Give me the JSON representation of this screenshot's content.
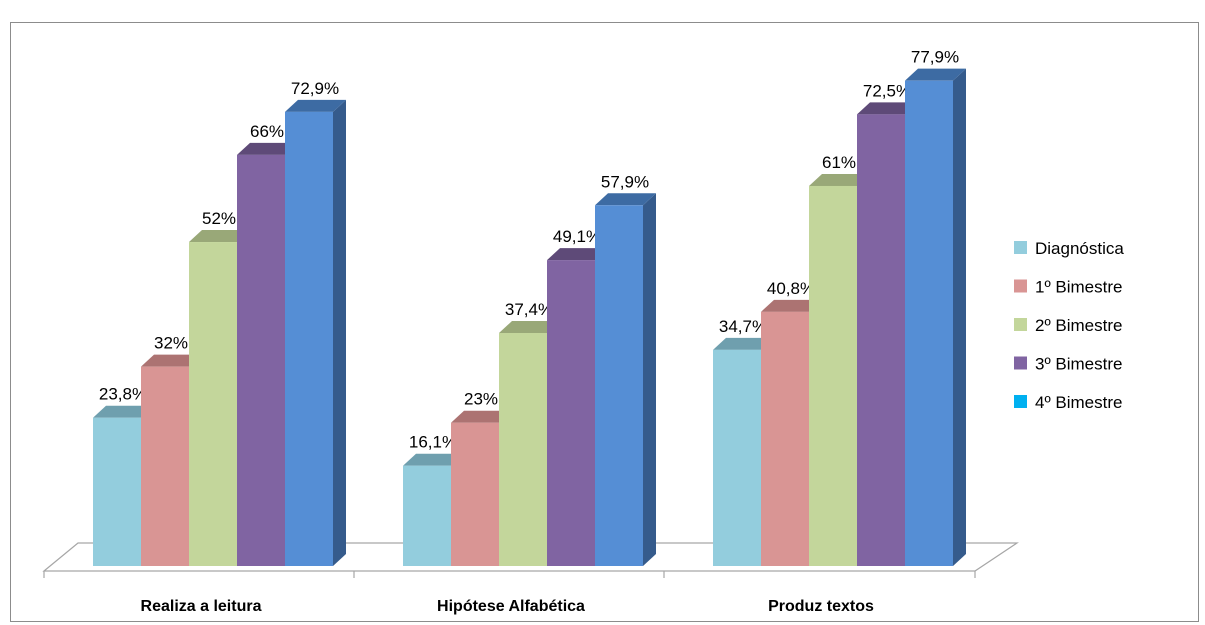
{
  "chart_data": {
    "type": "bar",
    "title": "",
    "categories": [
      "Realiza a leitura",
      "Hipótese Alfabética",
      "Produz textos"
    ],
    "series": [
      {
        "name": "Diagnóstica",
        "values": [
          23.8,
          16.1,
          34.7
        ],
        "labels": [
          "23,8%",
          "16,1%",
          "34,7%"
        ],
        "color": "#93cddd",
        "top_color": "#6f9fae",
        "side_color": "#5f8d9c"
      },
      {
        "name": "1º Bimestre",
        "values": [
          32,
          23,
          40.8
        ],
        "labels": [
          "32%",
          "23%",
          "40,8%"
        ],
        "color": "#d99594",
        "top_color": "#ac7372",
        "side_color": "#9a6463"
      },
      {
        "name": "2º Bimestre",
        "values": [
          52,
          37.4,
          61
        ],
        "labels": [
          "52%",
          "37,4%",
          "61%"
        ],
        "color": "#c3d69b",
        "top_color": "#99a878",
        "side_color": "#879566"
      },
      {
        "name": "3º Bimestre",
        "values": [
          66,
          49.1,
          72.5
        ],
        "labels": [
          "66%",
          "49,1%",
          "72,5%"
        ],
        "color": "#8064a2",
        "top_color": "#5e4a78",
        "side_color": "#503f67"
      },
      {
        "name": "4º Bimestre",
        "values": [
          72.9,
          57.9,
          77.9
        ],
        "labels": [
          "72,9%",
          "57,9%",
          "77,9%"
        ],
        "color": "#558ed5",
        "top_color": "#3d6ba3",
        "side_color": "#355b8c"
      }
    ],
    "legend_colors": [
      "#93cddd",
      "#d99594",
      "#c3d69b",
      "#8064a2",
      "#00b0f0"
    ],
    "ylim": [
      0,
      100
    ],
    "legend_position": "right",
    "grid": false
  }
}
